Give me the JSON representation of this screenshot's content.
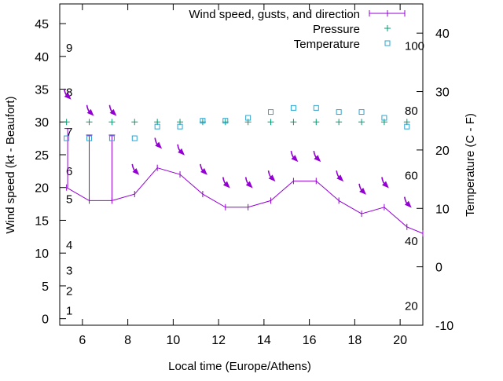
{
  "chart_data": {
    "type": "line",
    "xlabel": "Local time (Europe/Athens)",
    "ylabel_left": "Wind speed (kt - Beaufort)",
    "ylabel_right": "Temperature (C - F)",
    "xlim": [
      5,
      21
    ],
    "ylim_left": [
      -1,
      48
    ],
    "ylim_right": [
      -10,
      45
    ],
    "x_ticks": [
      "6",
      "8",
      "10",
      "12",
      "14",
      "16",
      "18",
      "20"
    ],
    "y_ticks_left": [
      "0",
      "5",
      "10",
      "15",
      "20",
      "25",
      "30",
      "35",
      "40",
      "45"
    ],
    "y_ticks_right": [
      "-10",
      "0",
      "10",
      "20",
      "30",
      "40"
    ],
    "legend": [
      {
        "label": "Wind speed, gusts, and direction",
        "color": "#9400d3"
      },
      {
        "label": "Pressure",
        "color": "#009e73"
      },
      {
        "label": "Temperature",
        "color": "#2ba5d0"
      }
    ],
    "beaufort_labels": [
      {
        "text": "1",
        "y": 1.2
      },
      {
        "text": "2",
        "y": 4.2
      },
      {
        "text": "3",
        "y": 7.3
      },
      {
        "text": "4",
        "y": 11.2
      },
      {
        "text": "5",
        "y": 18.2
      },
      {
        "text": "6",
        "y": 22.5
      },
      {
        "text": "7",
        "y": 28.5
      },
      {
        "text": "8",
        "y": 34.5
      },
      {
        "text": "9",
        "y": 41.3
      }
    ],
    "fahrenheit_labels": [
      {
        "text": "20",
        "y": -6.7
      },
      {
        "text": "40",
        "y": 4.4
      },
      {
        "text": "60",
        "y": 15.6
      },
      {
        "text": "80",
        "y": 26.7
      },
      {
        "text": "100",
        "y": 37.8
      }
    ],
    "wind": {
      "color": "#9400d3",
      "x": [
        5.3,
        6.3,
        7.3,
        8.3,
        9.3,
        10.3,
        11.3,
        12.3,
        13.3,
        14.3,
        15.3,
        16.3,
        17.3,
        18.3,
        19.3,
        20.3,
        21
      ],
      "y": [
        20,
        18,
        18,
        19,
        23,
        22,
        19,
        17,
        17,
        18,
        21,
        21,
        18,
        16,
        17,
        14,
        13
      ],
      "gusts": [
        {
          "x": 5.35,
          "low": 20,
          "high": 29
        },
        {
          "x": 6.3,
          "low": 18,
          "high": 28
        },
        {
          "x": 7.3,
          "low": 18,
          "high": 28
        }
      ],
      "direction_markers_y": [
        34,
        31.5,
        31.5,
        22.5,
        26.5,
        25.5,
        22.5,
        20.5,
        20.5,
        21.5,
        24.5,
        24.5,
        21.5,
        19.5,
        20.5,
        17.5
      ],
      "direction_markers_x": [
        5.3,
        6.3,
        7.3,
        8.3,
        9.3,
        10.3,
        11.3,
        12.3,
        13.3,
        14.3,
        15.3,
        16.3,
        17.3,
        18.3,
        19.3,
        20.3
      ]
    },
    "pressure": {
      "color": "#009e73",
      "marker": "+",
      "x": [
        5.3,
        6.3,
        7.3,
        8.3,
        9.3,
        10.3,
        11.3,
        12.3,
        13.3,
        14.3,
        15.3,
        16.3,
        17.3,
        18.3,
        19.3,
        20.3
      ],
      "y": [
        30,
        30,
        30,
        30,
        30,
        30,
        30,
        30,
        30,
        30,
        30,
        30,
        30,
        30,
        30,
        30
      ]
    },
    "temperature": {
      "color": "#2ba5d0",
      "marker": "square",
      "x": [
        5.3,
        6.3,
        7.3,
        8.3,
        9.3,
        10.3,
        11.3,
        12.3,
        13.3,
        14.3,
        15.3,
        16.3,
        17.3,
        18.3,
        19.3,
        20.3
      ],
      "y": [
        22,
        22,
        22,
        22,
        24,
        24,
        25,
        25,
        25.5,
        26.5,
        27.2,
        27.2,
        26.5,
        26.5,
        25.5,
        24
      ]
    }
  }
}
